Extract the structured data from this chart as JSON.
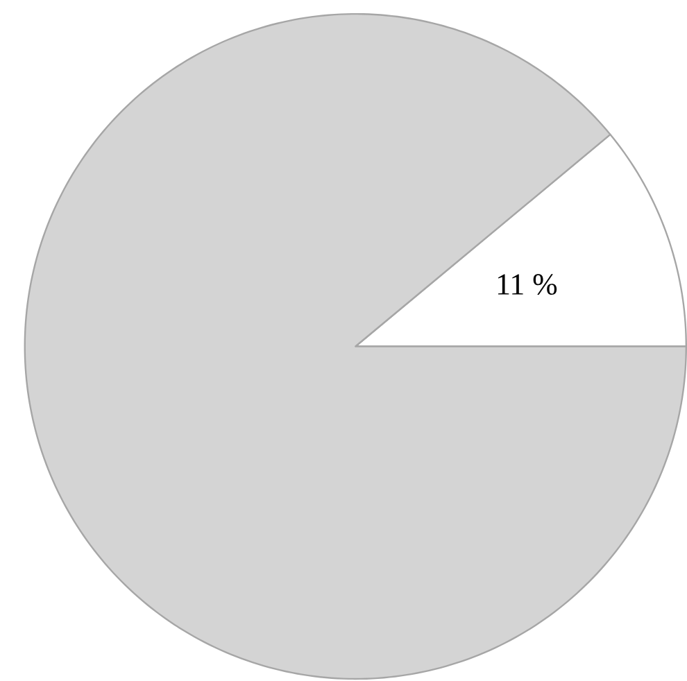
{
  "chart_data": {
    "type": "pie",
    "categories": [
      null,
      null
    ],
    "values": [
      11,
      89
    ],
    "colors": [
      "#ffffff",
      "#d4d4d4"
    ],
    "value_labels": [
      "11 %",
      null
    ]
  }
}
